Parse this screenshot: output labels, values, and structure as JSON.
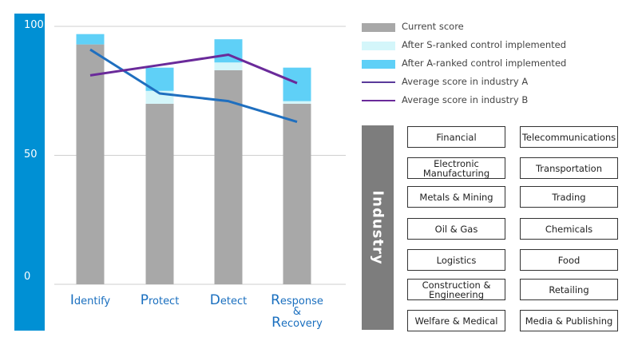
{
  "chart_data": {
    "type": "bar",
    "stacked": true,
    "categories": [
      [
        "I",
        "dentify"
      ],
      [
        "P",
        "rotect"
      ],
      [
        "D",
        "etect"
      ],
      [
        "R",
        "esponse"
      ]
    ],
    "category_labels": [
      "Identify",
      "Protect",
      "Detect",
      "Response & Recovery"
    ],
    "amp": "&",
    "recovery": [
      "R",
      "ecovery"
    ],
    "ylim": [
      0,
      100
    ],
    "yticks": [
      "100",
      "50",
      "0"
    ],
    "ytick_values": [
      100,
      50,
      0
    ],
    "series": [
      {
        "name": "Current score",
        "values": [
          93,
          70,
          83,
          70
        ],
        "color": "#a8a8a8"
      },
      {
        "name": "After S-ranked control implemented",
        "values": [
          0,
          5,
          3,
          1
        ],
        "color": "#d4f6fa"
      },
      {
        "name": "After A-ranked control implemented",
        "values": [
          4,
          9,
          9,
          13
        ],
        "color": "#5fd0f7"
      }
    ],
    "lines": [
      {
        "name": "Average score in industry A",
        "values": [
          91,
          74,
          71,
          63
        ],
        "color": "#1f6fbf"
      },
      {
        "name": "Average score in industry B",
        "values": [
          81,
          85,
          89,
          78
        ],
        "color": "#6a2a9a"
      }
    ]
  },
  "legend": [
    {
      "label": "Current score",
      "kind": "box",
      "color": "#a8a8a8"
    },
    {
      "label": "After S-ranked control implemented",
      "kind": "box",
      "color": "#d4f6fa"
    },
    {
      "label": "After A-ranked control implemented",
      "kind": "box",
      "color": "#5fd0f7"
    },
    {
      "label": "Average score in industry A",
      "kind": "line",
      "color": "#5a3a9a"
    },
    {
      "label": "Average score in industry B",
      "kind": "line",
      "color": "#6a2a9a"
    }
  ],
  "industry": {
    "heading": "Industry",
    "items": [
      "Financial",
      "Telecommunications",
      "Electronic Manufacturing",
      "Transportation",
      "Metals & Mining",
      "Trading",
      "Oil & Gas",
      "Chemicals",
      "Logistics",
      "Food",
      "Construction & Engineering",
      "Retailing",
      "Welfare & Medical",
      "Media & Publishing"
    ]
  },
  "colors": {
    "panel": "#0090d4",
    "label": "#1a6fbf",
    "industry_bar": "#7d7d7d"
  }
}
